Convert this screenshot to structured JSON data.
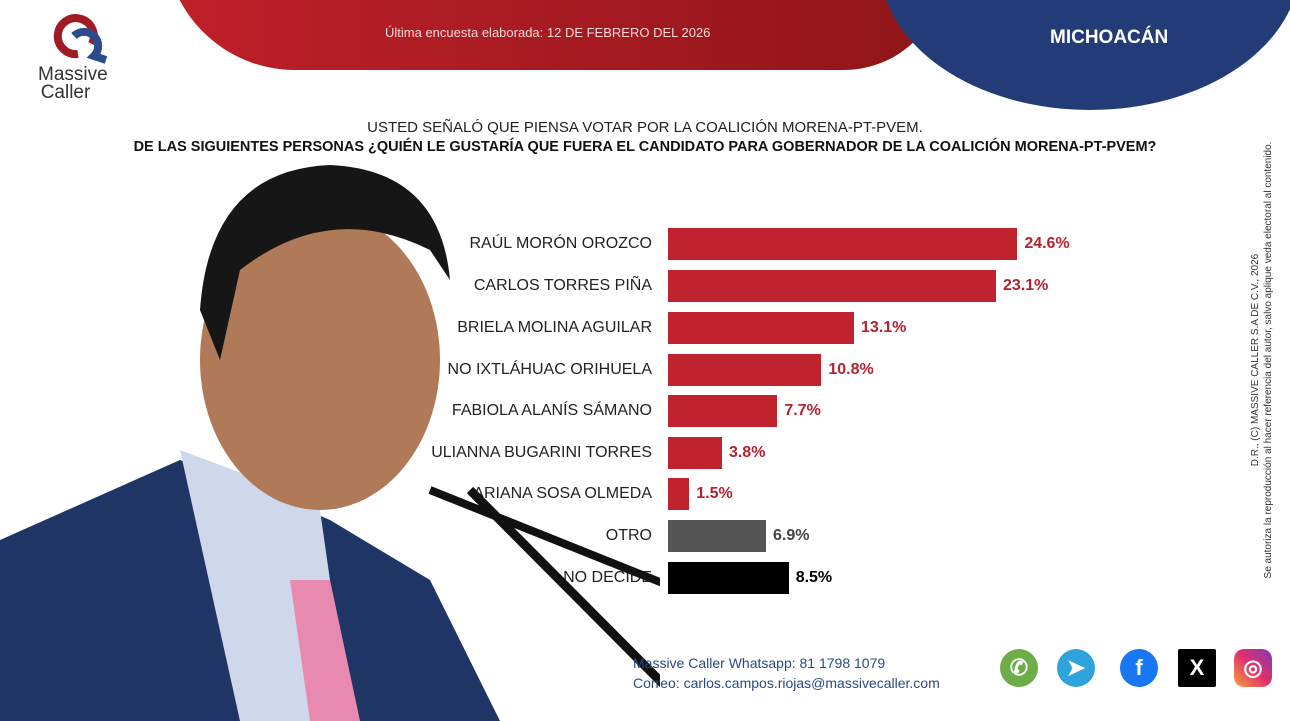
{
  "header": {
    "date_text": "Última encuesta elaborada: 12 DE FEBRERO DEL 2026",
    "state": "MICHOACÁN",
    "logo_text": "Massive Caller"
  },
  "question": {
    "line1": "USTED SEÑALÓ QUE PIENSA VOTAR POR LA COALICIÓN MORENA-PT-PVEM.",
    "line2": "DE LAS SIGUIENTES PERSONAS ¿QUIÉN LE GUSTARÍA QUE FUERA EL CANDIDATO PARA GOBERNADOR DE LA COALICIÓN MORENA-PT-PVEM?"
  },
  "chart_data": {
    "type": "bar",
    "orientation": "horizontal",
    "categories": [
      "RAÚL MORÓN OROZCO",
      "CARLOS TORRES PIÑA",
      "BRIELA MOLINA AGUILAR",
      "NO IXTLÁHUAC ORIHUELA",
      "FABIOLA ALANÍS SÁMANO",
      "ULIANNA BUGARINI TORRES",
      "ARIANA SOSA OLMEDA",
      "OTRO",
      "NO DECIDE"
    ],
    "values": [
      24.6,
      23.1,
      13.1,
      10.8,
      7.7,
      3.8,
      1.5,
      6.9,
      8.5
    ],
    "data_labels": [
      "24.6%",
      "23.1%",
      "13.1%",
      "10.8%",
      "7.7%",
      "3.8%",
      "1.5%",
      "6.9%",
      "8.5%"
    ],
    "colors": [
      "#c0232e",
      "#c0232e",
      "#c0232e",
      "#c0232e",
      "#c0232e",
      "#c0232e",
      "#c0232e",
      "#555555",
      "#000000"
    ],
    "label_colors": [
      "#b3232e",
      "#b3232e",
      "#b3232e",
      "#b3232e",
      "#b3232e",
      "#b3232e",
      "#b3232e",
      "#444444",
      "#000000"
    ]
  },
  "legal": {
    "line1": "D.R., (C) MASSIVE CALLER S.A DE C.V., 2026",
    "line2": "Se autoriza la reproducción al hacer referencia del autor, salvo aplique veda electoral al contenido."
  },
  "footer": {
    "whatsapp": "Massive Caller Whatsapp: 81 1798 1079",
    "email": "Correo: carlos.campos.riojas@massivecaller.com",
    "social": [
      "whatsapp-icon",
      "telegram-icon",
      "facebook-icon",
      "x-icon",
      "instagram-icon"
    ]
  }
}
